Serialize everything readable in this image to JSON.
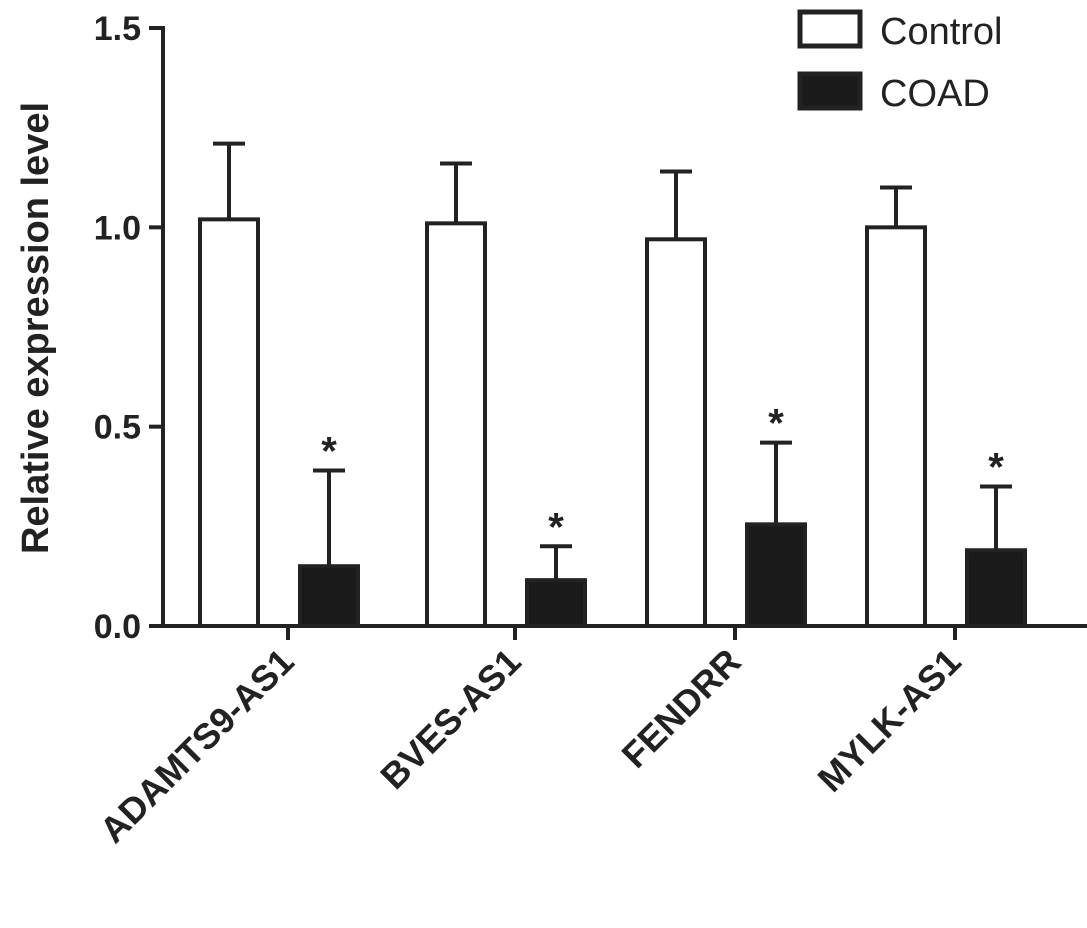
{
  "chart_data": {
    "type": "bar",
    "title": "",
    "xlabel": "",
    "ylabel": "Relative expression level",
    "ylim": [
      0,
      1.5
    ],
    "yticks": [
      "0.0",
      "0.5",
      "1.0",
      "1.5"
    ],
    "categories": [
      "ADAMTS9-AS1",
      "BVES-AS1",
      "FENDRR",
      "MYLK-AS1"
    ],
    "series": [
      {
        "name": "Control",
        "color": "#ffffff",
        "values": [
          1.02,
          1.01,
          0.97,
          1.0
        ],
        "error_upper": [
          1.21,
          1.16,
          1.14,
          1.1
        ]
      },
      {
        "name": "COAD",
        "color": "#1a1a1a",
        "values": [
          0.15,
          0.115,
          0.255,
          0.19
        ],
        "error_upper": [
          0.39,
          0.2,
          0.46,
          0.35
        ]
      }
    ],
    "annotations": [
      "*",
      "*",
      "*",
      "*"
    ],
    "legend": {
      "position": "top-right",
      "labels": [
        "Control",
        "COAD"
      ]
    }
  }
}
